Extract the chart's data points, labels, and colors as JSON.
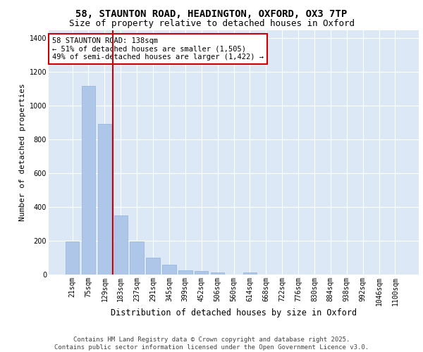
{
  "title1": "58, STAUNTON ROAD, HEADINGTON, OXFORD, OX3 7TP",
  "title2": "Size of property relative to detached houses in Oxford",
  "xlabel": "Distribution of detached houses by size in Oxford",
  "ylabel": "Number of detached properties",
  "categories": [
    "21sqm",
    "75sqm",
    "129sqm",
    "183sqm",
    "237sqm",
    "291sqm",
    "345sqm",
    "399sqm",
    "452sqm",
    "506sqm",
    "560sqm",
    "614sqm",
    "668sqm",
    "722sqm",
    "776sqm",
    "830sqm",
    "884sqm",
    "938sqm",
    "992sqm",
    "1046sqm",
    "1100sqm"
  ],
  "bar_values": [
    195,
    1120,
    895,
    350,
    195,
    100,
    60,
    25,
    20,
    13,
    0,
    13,
    0,
    0,
    0,
    0,
    0,
    0,
    0,
    0,
    0
  ],
  "bar_color": "#aec6e8",
  "bar_edge_color": "#8fb4d8",
  "vline_color": "#cc0000",
  "vline_x": 2.5,
  "annotation_text": "58 STAUNTON ROAD: 138sqm\n← 51% of detached houses are smaller (1,505)\n49% of semi-detached houses are larger (1,422) →",
  "annotation_box_color": "#ffffff",
  "annotation_box_edge": "#cc0000",
  "ylim": [
    0,
    1450
  ],
  "yticks": [
    0,
    200,
    400,
    600,
    800,
    1000,
    1200,
    1400
  ],
  "background_color": "#dce8f5",
  "footer_text": "Contains HM Land Registry data © Crown copyright and database right 2025.\nContains public sector information licensed under the Open Government Licence v3.0.",
  "title1_fontsize": 10,
  "title2_fontsize": 9,
  "xlabel_fontsize": 8.5,
  "ylabel_fontsize": 8,
  "tick_fontsize": 7,
  "annotation_fontsize": 7.5,
  "footer_fontsize": 6.5
}
